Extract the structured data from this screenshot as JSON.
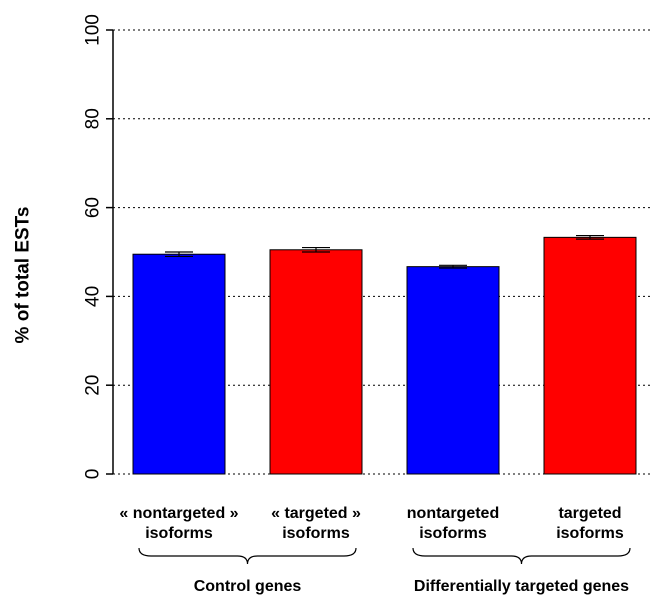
{
  "chart_data": {
    "type": "bar",
    "title": "",
    "xlabel": "",
    "ylabel": "% of total ESTs",
    "ylim": [
      0,
      100
    ],
    "yticks": [
      0,
      20,
      40,
      60,
      80,
      100
    ],
    "grid": "horizontal dotted",
    "categories": [
      [
        "« nontargeted »",
        "isoforms"
      ],
      [
        "« targeted »",
        "isoforms"
      ],
      [
        "nontargeted",
        "isoforms"
      ],
      [
        "targeted",
        "isoforms"
      ]
    ],
    "values": [
      49.5,
      50.5,
      46.7,
      53.3
    ],
    "errors": [
      0.5,
      0.5,
      0.3,
      0.4
    ],
    "colors": [
      "#0000ff",
      "#ff0000",
      "#0000ff",
      "#ff0000"
    ],
    "groups": [
      {
        "label": "Control genes",
        "members": [
          0,
          1
        ]
      },
      {
        "label": "Differentially targeted genes",
        "members": [
          2,
          3
        ]
      }
    ]
  }
}
